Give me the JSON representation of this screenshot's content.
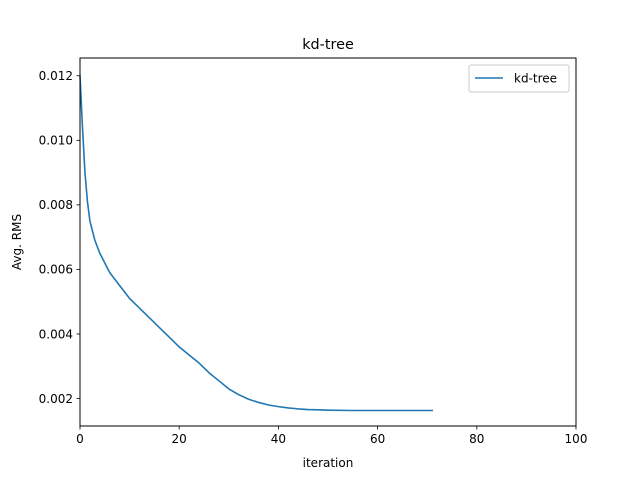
{
  "chart_data": {
    "type": "line",
    "title": "kd-tree",
    "xlabel": "iteration",
    "ylabel": "Avg. RMS",
    "xlim": [
      0,
      100
    ],
    "ylim": [
      0.00115,
      0.01255
    ],
    "xticks": [
      "0",
      "20",
      "40",
      "60",
      "80",
      "100"
    ],
    "yticks": [
      "0.002",
      "0.004",
      "0.006",
      "0.008",
      "0.010",
      "0.012"
    ],
    "xtick_values": [
      0,
      20,
      40,
      60,
      80,
      100
    ],
    "ytick_values": [
      0.002,
      0.004,
      0.006,
      0.008,
      0.01,
      0.012
    ],
    "grid": false,
    "legend_position": "top-right",
    "series": [
      {
        "name": "kd-tree",
        "color": "#1f77b4",
        "x": [
          0,
          0.5,
          1,
          1.5,
          2,
          2.5,
          3,
          4,
          5,
          6,
          7,
          8,
          9,
          10,
          12,
          14,
          16,
          18,
          20,
          22,
          24,
          26,
          28,
          30,
          32,
          34,
          36,
          38,
          40,
          42,
          44,
          46,
          48,
          50,
          55,
          60,
          65,
          71
        ],
        "y": [
          0.012,
          0.0104,
          0.009,
          0.0081,
          0.0075,
          0.0072,
          0.0069,
          0.0065,
          0.0062,
          0.0059,
          0.0057,
          0.0055,
          0.0053,
          0.0051,
          0.0048,
          0.0045,
          0.0042,
          0.0039,
          0.0036,
          0.00335,
          0.0031,
          0.0028,
          0.00255,
          0.0023,
          0.00212,
          0.00198,
          0.00188,
          0.0018,
          0.00175,
          0.00171,
          0.00168,
          0.00166,
          0.00165,
          0.00164,
          0.00163,
          0.00163,
          0.00163,
          0.00163
        ]
      }
    ]
  }
}
